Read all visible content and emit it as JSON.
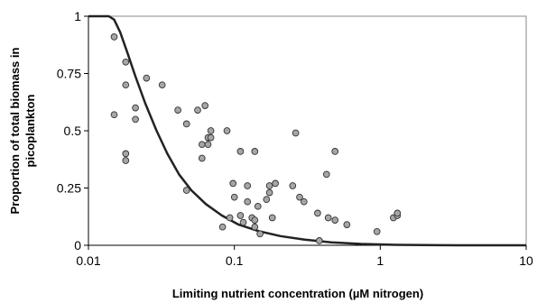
{
  "chart_data": {
    "type": "scatter",
    "title": "",
    "xlabel": "Limiting nutrient concentration (µM nitrogen)",
    "ylabel_lines": [
      "Proportion of total biomass in",
      "picoplankton"
    ],
    "x_scale": "log",
    "xlim": [
      0.01,
      10
    ],
    "ylim": [
      0,
      1
    ],
    "x_ticks": [
      {
        "value": 0.01,
        "label": "0.01"
      },
      {
        "value": 0.1,
        "label": "0.1"
      },
      {
        "value": 1,
        "label": "1"
      },
      {
        "value": 10,
        "label": "10"
      }
    ],
    "y_ticks": [
      {
        "value": 0,
        "label": "0"
      },
      {
        "value": 0.25,
        "label": "0.25"
      },
      {
        "value": 0.5,
        "label": "0.5"
      },
      {
        "value": 0.75,
        "label": "0.75"
      },
      {
        "value": 1,
        "label": "1"
      }
    ],
    "grid": false,
    "legend": "none",
    "colors": {
      "points": "#a6a6a6",
      "point_edge": "#333333",
      "curve": "#222222"
    },
    "series": [
      {
        "type": "scatter",
        "points": [
          [
            0.015,
            0.91
          ],
          [
            0.015,
            0.57
          ],
          [
            0.018,
            0.8
          ],
          [
            0.018,
            0.7
          ],
          [
            0.018,
            0.4
          ],
          [
            0.018,
            0.37
          ],
          [
            0.021,
            0.6
          ],
          [
            0.021,
            0.55
          ],
          [
            0.025,
            0.73
          ],
          [
            0.032,
            0.7
          ],
          [
            0.041,
            0.59
          ],
          [
            0.047,
            0.53
          ],
          [
            0.047,
            0.24
          ],
          [
            0.056,
            0.59
          ],
          [
            0.06,
            0.44
          ],
          [
            0.06,
            0.38
          ],
          [
            0.063,
            0.61
          ],
          [
            0.066,
            0.47
          ],
          [
            0.066,
            0.44
          ],
          [
            0.069,
            0.5
          ],
          [
            0.069,
            0.47
          ],
          [
            0.083,
            0.08
          ],
          [
            0.089,
            0.5
          ],
          [
            0.093,
            0.12
          ],
          [
            0.098,
            0.27
          ],
          [
            0.1,
            0.21
          ],
          [
            0.11,
            0.41
          ],
          [
            0.11,
            0.13
          ],
          [
            0.115,
            0.1
          ],
          [
            0.123,
            0.26
          ],
          [
            0.123,
            0.19
          ],
          [
            0.132,
            0.12
          ],
          [
            0.138,
            0.41
          ],
          [
            0.138,
            0.11
          ],
          [
            0.138,
            0.08
          ],
          [
            0.145,
            0.17
          ],
          [
            0.15,
            0.05
          ],
          [
            0.166,
            0.2
          ],
          [
            0.174,
            0.26
          ],
          [
            0.174,
            0.23
          ],
          [
            0.182,
            0.12
          ],
          [
            0.191,
            0.27
          ],
          [
            0.251,
            0.26
          ],
          [
            0.263,
            0.49
          ],
          [
            0.28,
            0.21
          ],
          [
            0.3,
            0.19
          ],
          [
            0.372,
            0.14
          ],
          [
            0.382,
            0.02
          ],
          [
            0.428,
            0.31
          ],
          [
            0.44,
            0.12
          ],
          [
            0.49,
            0.41
          ],
          [
            0.49,
            0.11
          ],
          [
            0.59,
            0.09
          ],
          [
            0.95,
            0.06
          ],
          [
            1.23,
            0.12
          ],
          [
            1.31,
            0.13
          ],
          [
            1.31,
            0.14
          ]
        ]
      },
      {
        "type": "line",
        "points": [
          [
            0.01,
            1.0
          ],
          [
            0.0138,
            1.0
          ],
          [
            0.015,
            0.985
          ],
          [
            0.0165,
            0.93
          ],
          [
            0.0185,
            0.84
          ],
          [
            0.0209,
            0.74
          ],
          [
            0.0245,
            0.62
          ],
          [
            0.0293,
            0.5
          ],
          [
            0.0347,
            0.4
          ],
          [
            0.0417,
            0.31
          ],
          [
            0.0507,
            0.24
          ],
          [
            0.0638,
            0.18
          ],
          [
            0.0822,
            0.13
          ],
          [
            0.107,
            0.09
          ],
          [
            0.147,
            0.062
          ],
          [
            0.207,
            0.04
          ],
          [
            0.3,
            0.025
          ],
          [
            0.46,
            0.013
          ],
          [
            0.74,
            0.006
          ],
          [
            1.28,
            0.002
          ],
          [
            2.5,
            0.0005
          ],
          [
            4.5,
            0.0
          ],
          [
            10,
            0.0
          ]
        ]
      }
    ]
  }
}
